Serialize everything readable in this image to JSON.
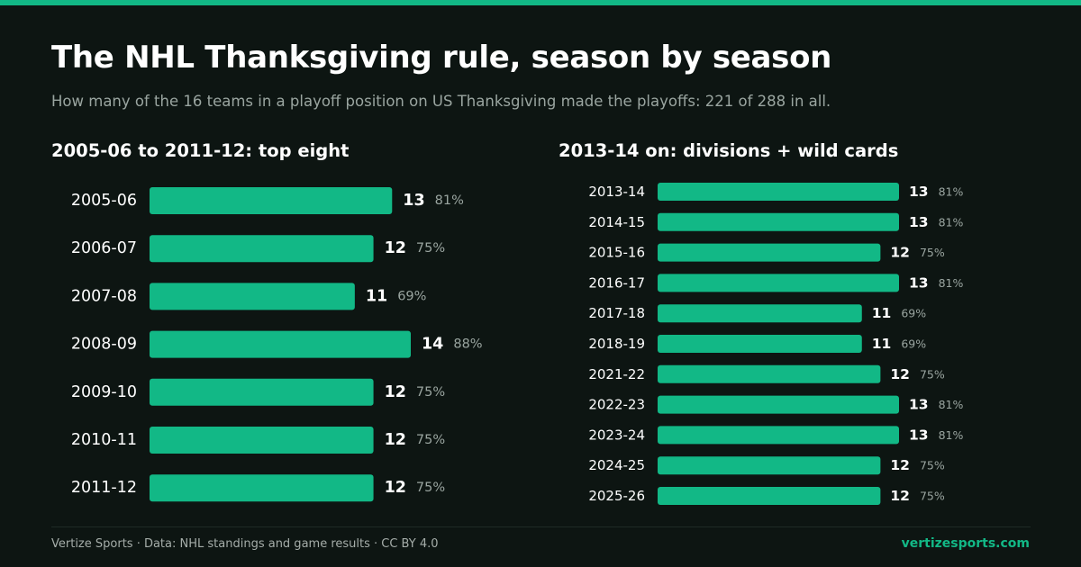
{
  "title": "The NHL Thanksgiving rule, season by season",
  "subtitle": "How many of the 16 teams in a playoff position on US Thanksgiving made the playoffs: 221 of 288 in all.",
  "colors": {
    "accent": "#12b886",
    "background": "#0d1512",
    "muted": "#9aa5a0",
    "text": "#ffffff"
  },
  "footer": {
    "credit": "Vertize Sports · Data: NHL standings and game results · CC BY 4.0",
    "brand": "vertizesports.com"
  },
  "chart_data": [
    {
      "type": "bar",
      "orientation": "horizontal",
      "title": "2005-06 to 2011-12: top eight",
      "categories": [
        "2005-06",
        "2006-07",
        "2007-08",
        "2008-09",
        "2009-10",
        "2010-11",
        "2011-12"
      ],
      "values": [
        13,
        12,
        11,
        14,
        12,
        12,
        12
      ],
      "percent_labels": [
        "81%",
        "75%",
        "69%",
        "88%",
        "75%",
        "75%",
        "75%"
      ],
      "xlim": [
        0,
        14
      ]
    },
    {
      "type": "bar",
      "orientation": "horizontal",
      "title": "2013-14 on: divisions + wild cards",
      "categories": [
        "2013-14",
        "2014-15",
        "2015-16",
        "2016-17",
        "2017-18",
        "2018-19",
        "2021-22",
        "2022-23",
        "2023-24",
        "2024-25",
        "2025-26"
      ],
      "values": [
        13,
        13,
        12,
        13,
        11,
        11,
        12,
        13,
        13,
        12,
        12
      ],
      "percent_labels": [
        "81%",
        "81%",
        "75%",
        "81%",
        "69%",
        "69%",
        "75%",
        "81%",
        "81%",
        "75%",
        "75%"
      ],
      "xlim": [
        0,
        13
      ]
    }
  ]
}
